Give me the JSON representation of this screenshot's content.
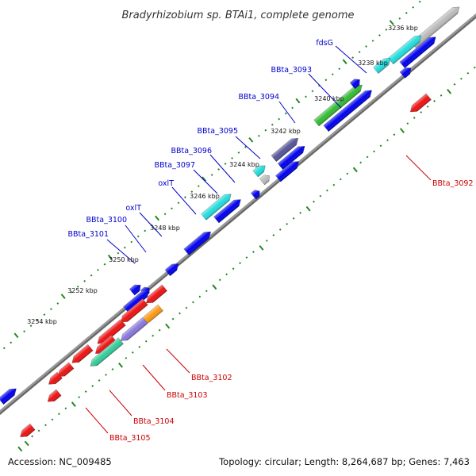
{
  "title": "Bradyrhizobium sp. BTAi1, complete genome",
  "footer": {
    "accession": "Accession: NC_009485",
    "summary": "Topology: circular; Length: 8,264,687 bp; Genes: 7,463"
  },
  "colors": {
    "blue": "#0000ee",
    "red": "#ee1111",
    "cyan": "#22dddd",
    "gray": "#bbbbbb",
    "green": "#33bb33",
    "navy": "#555599",
    "purple": "#8877dd",
    "orange": "#ff9911",
    "teal": "#33cc99",
    "tick_green": "#228822",
    "backbone": "#666666",
    "label_blue": "#0000cc",
    "label_red": "#cc0000"
  },
  "ticks": [
    "3236 kbp",
    "3238 kbp",
    "3240 kbp",
    "3242 kbp",
    "3244 kbp",
    "3246 kbp",
    "3248 kbp",
    "3250 kbp",
    "3252 kbp",
    "3254 kbp"
  ],
  "labels": [
    {
      "text": "fdsG",
      "strand": "plus"
    },
    {
      "text": "BBta_3093",
      "strand": "plus"
    },
    {
      "text": "BBta_3094",
      "strand": "plus"
    },
    {
      "text": "BBta_3095",
      "strand": "plus"
    },
    {
      "text": "BBta_3096",
      "strand": "plus"
    },
    {
      "text": "BBta_3097",
      "strand": "plus"
    },
    {
      "text": "oxlT",
      "strand": "plus"
    },
    {
      "text": "oxlT",
      "strand": "plus"
    },
    {
      "text": "BBta_3100",
      "strand": "plus"
    },
    {
      "text": "BBta_3101",
      "strand": "plus"
    },
    {
      "text": "BBta_3092",
      "strand": "minus"
    },
    {
      "text": "BBta_3102",
      "strand": "minus"
    },
    {
      "text": "BBta_3103",
      "strand": "minus"
    },
    {
      "text": "BBta_3104",
      "strand": "minus"
    },
    {
      "text": "BBta_3105",
      "strand": "minus"
    }
  ]
}
